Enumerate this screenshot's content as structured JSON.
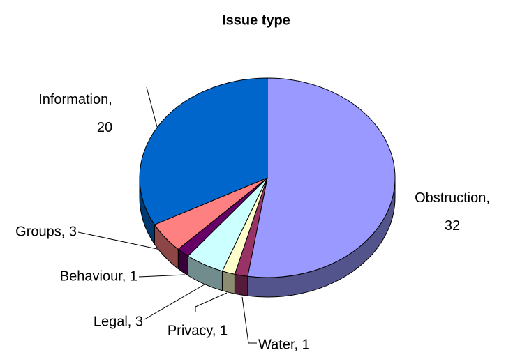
{
  "chart_data": {
    "type": "pie3d",
    "title": "Issue type",
    "categories": [
      "Obstruction",
      "Water",
      "Privacy",
      "Legal",
      "Behaviour",
      "Groups",
      "Information"
    ],
    "values": [
      32,
      1,
      1,
      3,
      1,
      3,
      20
    ],
    "value_labels": [
      "Obstruction, 32",
      "Water, 1",
      "Privacy, 1",
      "Legal, 3",
      "Behaviour, 1",
      "Groups, 3",
      "Information, 20"
    ],
    "colors": [
      "#9999ff",
      "#993366",
      "#ffffcc",
      "#ccffff",
      "#660066",
      "#ff8080",
      "#0066cc"
    ]
  }
}
